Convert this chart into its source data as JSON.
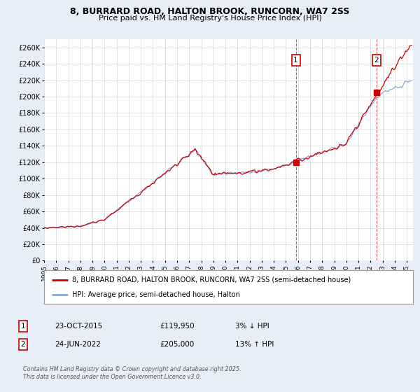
{
  "title_line1": "8, BURRARD ROAD, HALTON BROOK, RUNCORN, WA7 2SS",
  "title_line2": "Price paid vs. HM Land Registry's House Price Index (HPI)",
  "ylim": [
    0,
    270000
  ],
  "yticks": [
    0,
    20000,
    40000,
    60000,
    80000,
    100000,
    120000,
    140000,
    160000,
    180000,
    200000,
    220000,
    240000,
    260000
  ],
  "ytick_labels": [
    "£0",
    "£20K",
    "£40K",
    "£60K",
    "£80K",
    "£100K",
    "£120K",
    "£140K",
    "£160K",
    "£180K",
    "£200K",
    "£220K",
    "£240K",
    "£260K"
  ],
  "background_color": "#e8eef8",
  "plot_bg_color": "#ffffff",
  "grid_color": "#cccccc",
  "line_pp_color": "#cc0000",
  "line_hpi_color": "#88aadd",
  "point1_x": 2015.82,
  "point1_y": 119950,
  "point2_x": 2022.48,
  "point2_y": 205000,
  "vline1_x": 2015.82,
  "vline2_x": 2022.48,
  "legend_line1": "8, BURRARD ROAD, HALTON BROOK, RUNCORN, WA7 2SS (semi-detached house)",
  "legend_line2": "HPI: Average price, semi-detached house, Halton",
  "table_row1": [
    "1",
    "23-OCT-2015",
    "£119,950",
    "3% ↓ HPI"
  ],
  "table_row2": [
    "2",
    "24-JUN-2022",
    "£205,000",
    "13% ↑ HPI"
  ],
  "footer": "Contains HM Land Registry data © Crown copyright and database right 2025.\nThis data is licensed under the Open Government Licence v3.0.",
  "xmin": 1995,
  "xmax": 2025.5,
  "xticks": [
    1995,
    1996,
    1997,
    1998,
    1999,
    2000,
    2001,
    2002,
    2003,
    2004,
    2005,
    2006,
    2007,
    2008,
    2009,
    2010,
    2011,
    2012,
    2013,
    2014,
    2015,
    2016,
    2017,
    2018,
    2019,
    2020,
    2021,
    2022,
    2023,
    2024,
    2025
  ]
}
